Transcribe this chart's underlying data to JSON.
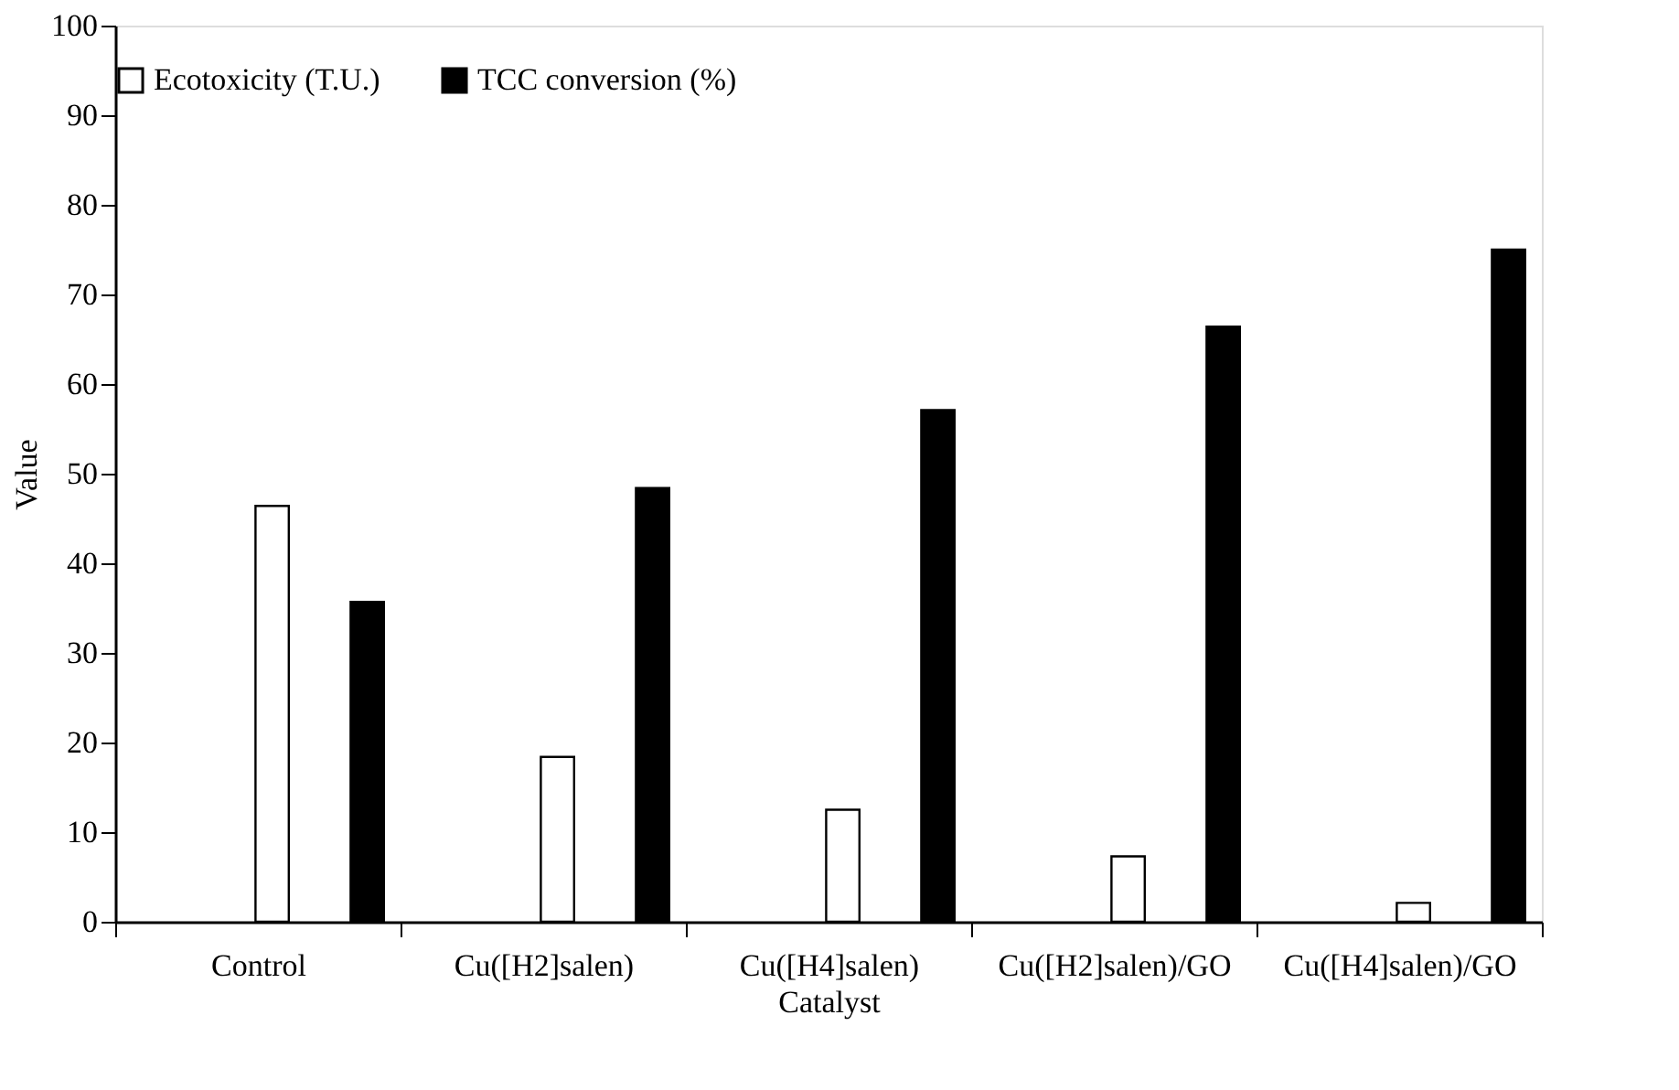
{
  "chart_data": {
    "type": "bar",
    "xlabel": "Catalyst",
    "ylabel": "Value",
    "categories": [
      "Control",
      "Cu([H2]salen)",
      "Cu([H4]salen)",
      "Cu([H2]salen)/GO",
      "Cu([H4]salen)/GO"
    ],
    "series": [
      {
        "name": "Ecotoxicity (T.U.)",
        "color": "#ffffff",
        "values": [
          46.4,
          18.4,
          12.5,
          7.3,
          2.1
        ]
      },
      {
        "name": "TCC conversion (%)",
        "color": "#000000",
        "values": [
          35.7,
          48.4,
          57.1,
          66.4,
          75.0
        ]
      }
    ],
    "ylim": [
      0,
      100
    ],
    "yticks": [
      0,
      10,
      20,
      30,
      40,
      50,
      60,
      70,
      80,
      90,
      100
    ],
    "grid": false,
    "legend": "top"
  }
}
